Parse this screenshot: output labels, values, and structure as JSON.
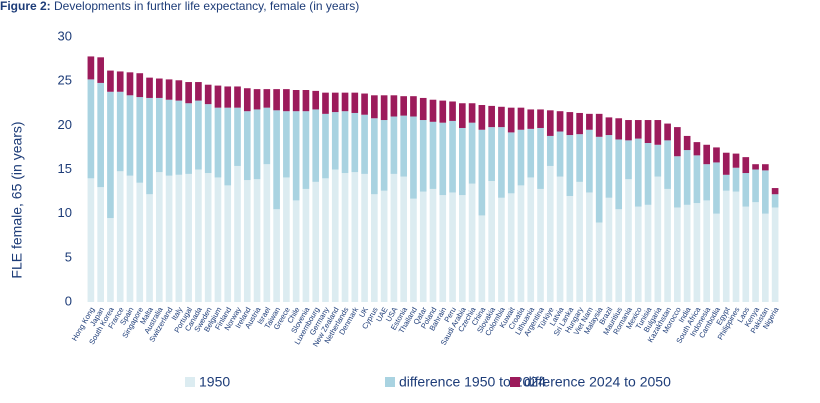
{
  "chart_data": {
    "type": "stacked_bar",
    "figure_label": "Figure 2:",
    "title": "Developments in further life expectancy, female (in years)",
    "y_label": "FLE female, 65 (in years)",
    "categories": [
      "Hong Kong",
      "Japan",
      "South Korea",
      "France",
      "Spain",
      "Singapore",
      "Malta",
      "Australia",
      "Switzerland",
      "Italy",
      "Portugal",
      "Canada",
      "Sweden",
      "Belgium",
      "Finland",
      "Norway",
      "Ireland",
      "Austria",
      "Israel",
      "Taiwan",
      "Greece",
      "Chile",
      "Slovenia",
      "Luxembourg",
      "Germany",
      "New Zealand",
      "Netherlands",
      "Denmark",
      "UK",
      "Cyprus",
      "UAE",
      "USA",
      "Estonia",
      "Thailand",
      "Qatar",
      "Poland",
      "Bahrain",
      "Peru",
      "Saudi Arabia",
      "Czechia",
      "China",
      "Slovakia",
      "Colombia",
      "Kuwait",
      "Croatia",
      "Lithuania",
      "Argentina",
      "Türkiye",
      "Latvia",
      "Sri Lanka",
      "Hungary",
      "Viet Nam",
      "Malaysia",
      "Brazil",
      "Mauritius",
      "Romania",
      "Mexico",
      "Tunisia",
      "Bulgaria",
      "Kazakhstan",
      "Morocco",
      "India",
      "South Africa",
      "Indonesia",
      "Cambodia",
      "Egypt",
      "Philippines",
      "Laos",
      "Kenya",
      "Pakistan",
      "Nigeria"
    ],
    "series": [
      {
        "name": "1950",
        "color": "#dcecf1",
        "values": [
          14,
          13,
          9.5,
          14.8,
          14.3,
          13.5,
          12.2,
          14.7,
          14.3,
          14.4,
          14.5,
          15.0,
          14.6,
          14.1,
          13.2,
          15.4,
          13.8,
          13.9,
          15.6,
          10.5,
          14.1,
          11.5,
          12.8,
          13.6,
          14.0,
          15.0,
          14.6,
          14.7,
          14.5,
          12.2,
          12.6,
          14.5,
          14.2,
          11.7,
          12.5,
          12.8,
          12.1,
          12.4,
          12.1,
          13.4,
          9.8,
          13.7,
          11.8,
          12.3,
          13.2,
          14.1,
          12.8,
          15.4,
          14.2,
          12.0,
          13.6,
          12.4,
          9.0,
          11.8,
          10.5,
          13.9,
          10.8,
          11.0,
          14.2,
          12.8,
          10.7,
          11.0,
          11.2,
          11.5,
          10.0,
          12.6,
          12.5,
          10.8,
          11.3,
          10.0,
          10.7
        ]
      },
      {
        "name": "difference 1950 to 2024",
        "color": "#a9d3e1",
        "values": [
          11.2,
          11.8,
          14.3,
          9.0,
          9.1,
          9.7,
          10.9,
          8.4,
          8.6,
          8.4,
          8.0,
          7.8,
          7.8,
          7.9,
          8.8,
          6.6,
          7.8,
          7.9,
          6.4,
          11.2,
          7.5,
          10.1,
          8.8,
          8.2,
          7.3,
          6.5,
          7.0,
          6.7,
          6.7,
          8.6,
          8.0,
          6.5,
          6.9,
          9.3,
          8.1,
          7.6,
          8.2,
          8.1,
          7.6,
          6.9,
          9.7,
          6.1,
          8.0,
          6.9,
          6.3,
          5.5,
          6.9,
          3.4,
          5.1,
          6.9,
          5.4,
          7.1,
          9.7,
          7.1,
          7.9,
          4.4,
          7.7,
          7.0,
          3.6,
          5.5,
          5.8,
          6.2,
          5.4,
          4.1,
          5.8,
          1.8,
          2.7,
          3.8,
          3.7,
          4.9,
          1.5
        ]
      },
      {
        "name": "difference 2024 to 2050",
        "color": "#9c1b5b",
        "values": [
          2.6,
          2.9,
          2.4,
          2.3,
          2.6,
          2.7,
          2.3,
          2.2,
          2.3,
          2.3,
          2.4,
          2.1,
          2.2,
          2.5,
          2.4,
          2.4,
          2.6,
          2.3,
          2.1,
          2.4,
          2.5,
          2.4,
          2.4,
          2.1,
          2.4,
          2.2,
          2.1,
          2.3,
          2.4,
          2.6,
          2.8,
          2.4,
          2.2,
          2.3,
          2.5,
          2.5,
          2.5,
          2.2,
          2.8,
          2.2,
          2.8,
          2.4,
          2.3,
          2.8,
          2.5,
          2.2,
          2.1,
          2.9,
          2.3,
          2.6,
          2.4,
          1.8,
          2.6,
          2.0,
          2.4,
          2.3,
          2.1,
          2.6,
          2.8,
          1.9,
          3.3,
          1.6,
          1.5,
          2.2,
          1.7,
          2.5,
          1.6,
          1.8,
          0.6,
          0.7,
          0.7
        ]
      }
    ],
    "ylim": [
      0,
      30
    ],
    "yticks": [
      0,
      5,
      10,
      15,
      20,
      25,
      30
    ],
    "legend": "bottom"
  }
}
